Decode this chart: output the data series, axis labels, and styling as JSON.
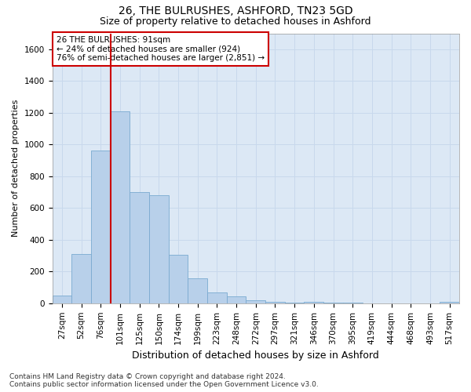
{
  "title_line1": "26, THE BULRUSHES, ASHFORD, TN23 5GD",
  "title_line2": "Size of property relative to detached houses in Ashford",
  "xlabel": "Distribution of detached houses by size in Ashford",
  "ylabel": "Number of detached properties",
  "categories": [
    "27sqm",
    "52sqm",
    "76sqm",
    "101sqm",
    "125sqm",
    "150sqm",
    "174sqm",
    "199sqm",
    "223sqm",
    "248sqm",
    "272sqm",
    "297sqm",
    "321sqm",
    "346sqm",
    "370sqm",
    "395sqm",
    "419sqm",
    "444sqm",
    "468sqm",
    "493sqm",
    "517sqm"
  ],
  "values": [
    50,
    310,
    960,
    1210,
    700,
    680,
    305,
    155,
    70,
    45,
    20,
    10,
    2,
    8,
    2,
    4,
    1,
    1,
    1,
    1,
    8
  ],
  "bar_color": "#b8d0ea",
  "bar_edge_color": "#7aaad0",
  "vline_color": "#cc0000",
  "annotation_text": "26 THE BULRUSHES: 91sqm\n← 24% of detached houses are smaller (924)\n76% of semi-detached houses are larger (2,851) →",
  "annotation_box_facecolor": "white",
  "annotation_box_edgecolor": "#cc0000",
  "ylim": [
    0,
    1700
  ],
  "yticks": [
    0,
    200,
    400,
    600,
    800,
    1000,
    1200,
    1400,
    1600
  ],
  "grid_color": "#c8d8ec",
  "bg_color": "#dce8f5",
  "footnote": "Contains HM Land Registry data © Crown copyright and database right 2024.\nContains public sector information licensed under the Open Government Licence v3.0.",
  "title_fontsize": 10,
  "subtitle_fontsize": 9,
  "ylabel_fontsize": 8,
  "xlabel_fontsize": 9,
  "tick_fontsize": 7.5,
  "annot_fontsize": 7.5,
  "footnote_fontsize": 6.5
}
